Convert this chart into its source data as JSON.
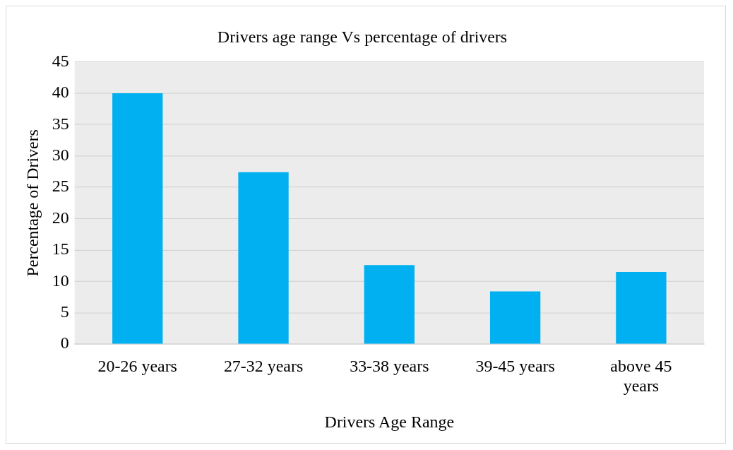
{
  "chart_data": {
    "type": "bar",
    "title": "Drivers age range Vs percentage of drivers",
    "xlabel": "Drivers Age Range",
    "ylabel": "Percentage of Drivers",
    "categories": [
      "20-26 years",
      "27-32 years",
      "33-38 years",
      "39-45 years",
      "above 45 years"
    ],
    "values": [
      40,
      27.4,
      12.6,
      8.4,
      11.5
    ],
    "color": "#00b0f0",
    "ylim": [
      0,
      45
    ],
    "yticks": [
      0,
      5,
      10,
      15,
      20,
      25,
      30,
      35,
      40,
      45
    ],
    "grid": "y"
  }
}
